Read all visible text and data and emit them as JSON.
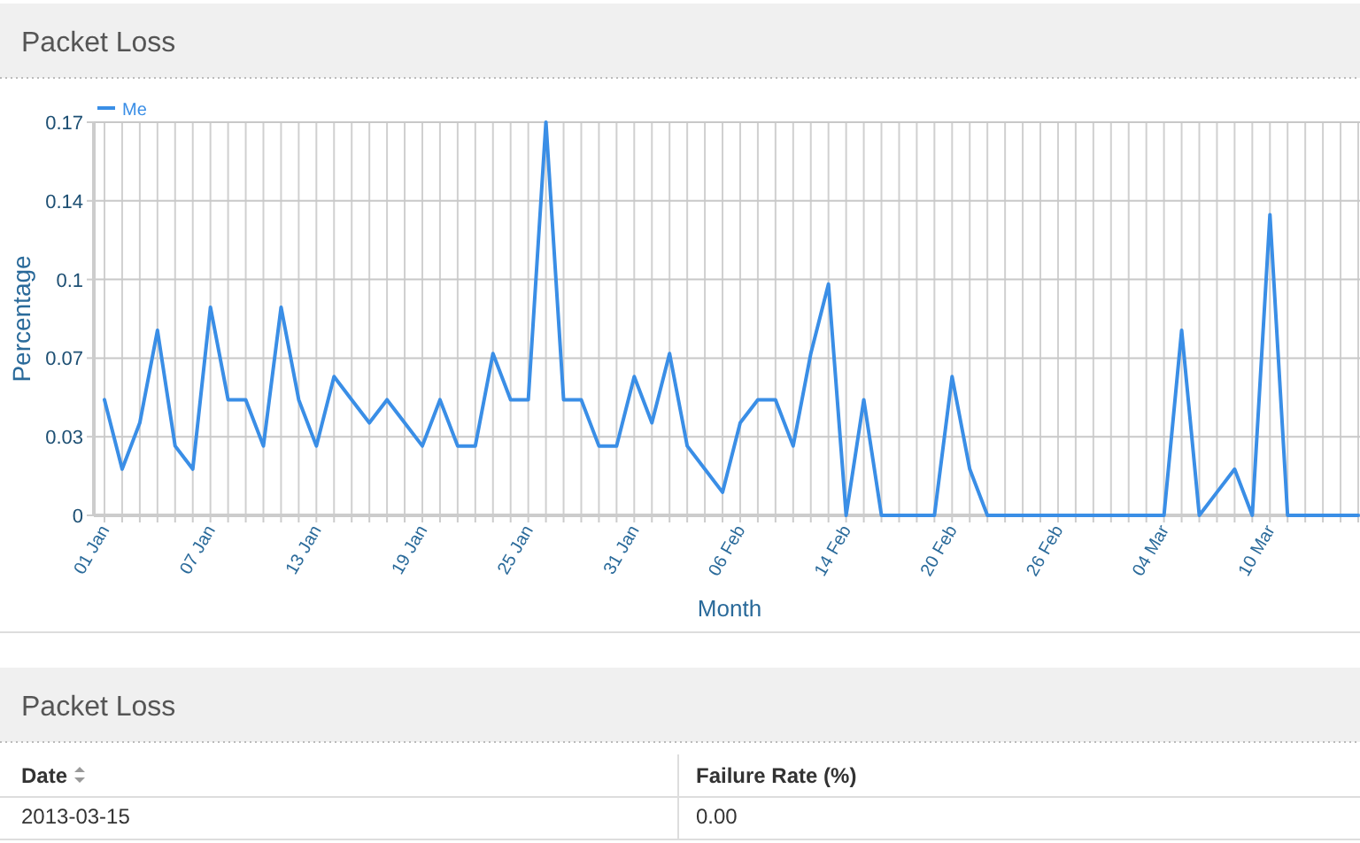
{
  "chart_data": [
    {
      "type": "line",
      "title": "Packet Loss",
      "xlabel": "Month",
      "ylabel": "Percentage",
      "legend": "top left",
      "grid": true,
      "marker": "none",
      "line_style": "solid",
      "categories": [
        "01 Jan",
        null,
        null,
        null,
        null,
        null,
        "07 Jan",
        null,
        null,
        null,
        null,
        null,
        "13 Jan",
        null,
        null,
        null,
        null,
        null,
        "19 Jan",
        null,
        null,
        null,
        null,
        null,
        "25 Jan",
        null,
        null,
        null,
        null,
        null,
        "31 Jan",
        null,
        null,
        null,
        null,
        null,
        "06 Feb",
        null,
        null,
        null,
        null,
        null,
        "14 Feb",
        null,
        null,
        null,
        null,
        null,
        "20 Feb",
        null,
        null,
        null,
        null,
        null,
        "26 Feb",
        null,
        null,
        null,
        null,
        null,
        "04 Mar",
        null,
        null,
        null,
        null,
        null,
        "10 Mar",
        null,
        null,
        null,
        null,
        null
      ],
      "ylim": [
        0,
        0.17
      ],
      "yticks": [
        0,
        {
          "value": 0.034,
          "label": "0.03"
        },
        {
          "value": 0.068,
          "label": "0.07"
        },
        {
          "value": 0.102,
          "label": "0.1"
        },
        {
          "value": 0.136,
          "label": "0.14"
        },
        0.17
      ],
      "series": [
        {
          "name": "Me",
          "color": "#3a8ee6",
          "values": [
            0.05,
            0.02,
            0.04,
            0.08,
            0.03,
            0.02,
            0.09,
            0.05,
            0.05,
            0.03,
            0.09,
            0.05,
            0.03,
            0.06,
            0.05,
            0.04,
            0.05,
            0.04,
            0.03,
            0.05,
            0.03,
            0.03,
            0.07,
            0.05,
            0.05,
            0.17,
            0.05,
            0.05,
            0.03,
            0.03,
            0.06,
            0.04,
            0.07,
            0.03,
            0.02,
            0.01,
            0.04,
            0.05,
            0.05,
            0.03,
            0.07,
            0.1,
            0,
            0.05,
            0,
            0,
            0,
            0,
            0.06,
            0.02,
            0,
            0,
            0,
            0,
            0,
            0,
            0,
            0,
            0,
            0,
            0,
            0.08,
            0,
            0.01,
            0.02,
            0,
            0.13,
            0,
            0,
            0,
            0,
            0
          ]
        }
      ]
    },
    {
      "type": "other",
      "title": "Packet Loss",
      "annotations": [
        "Date",
        "Failure Rate (%)",
        "2013-03-15",
        "0.00"
      ]
    }
  ]
}
